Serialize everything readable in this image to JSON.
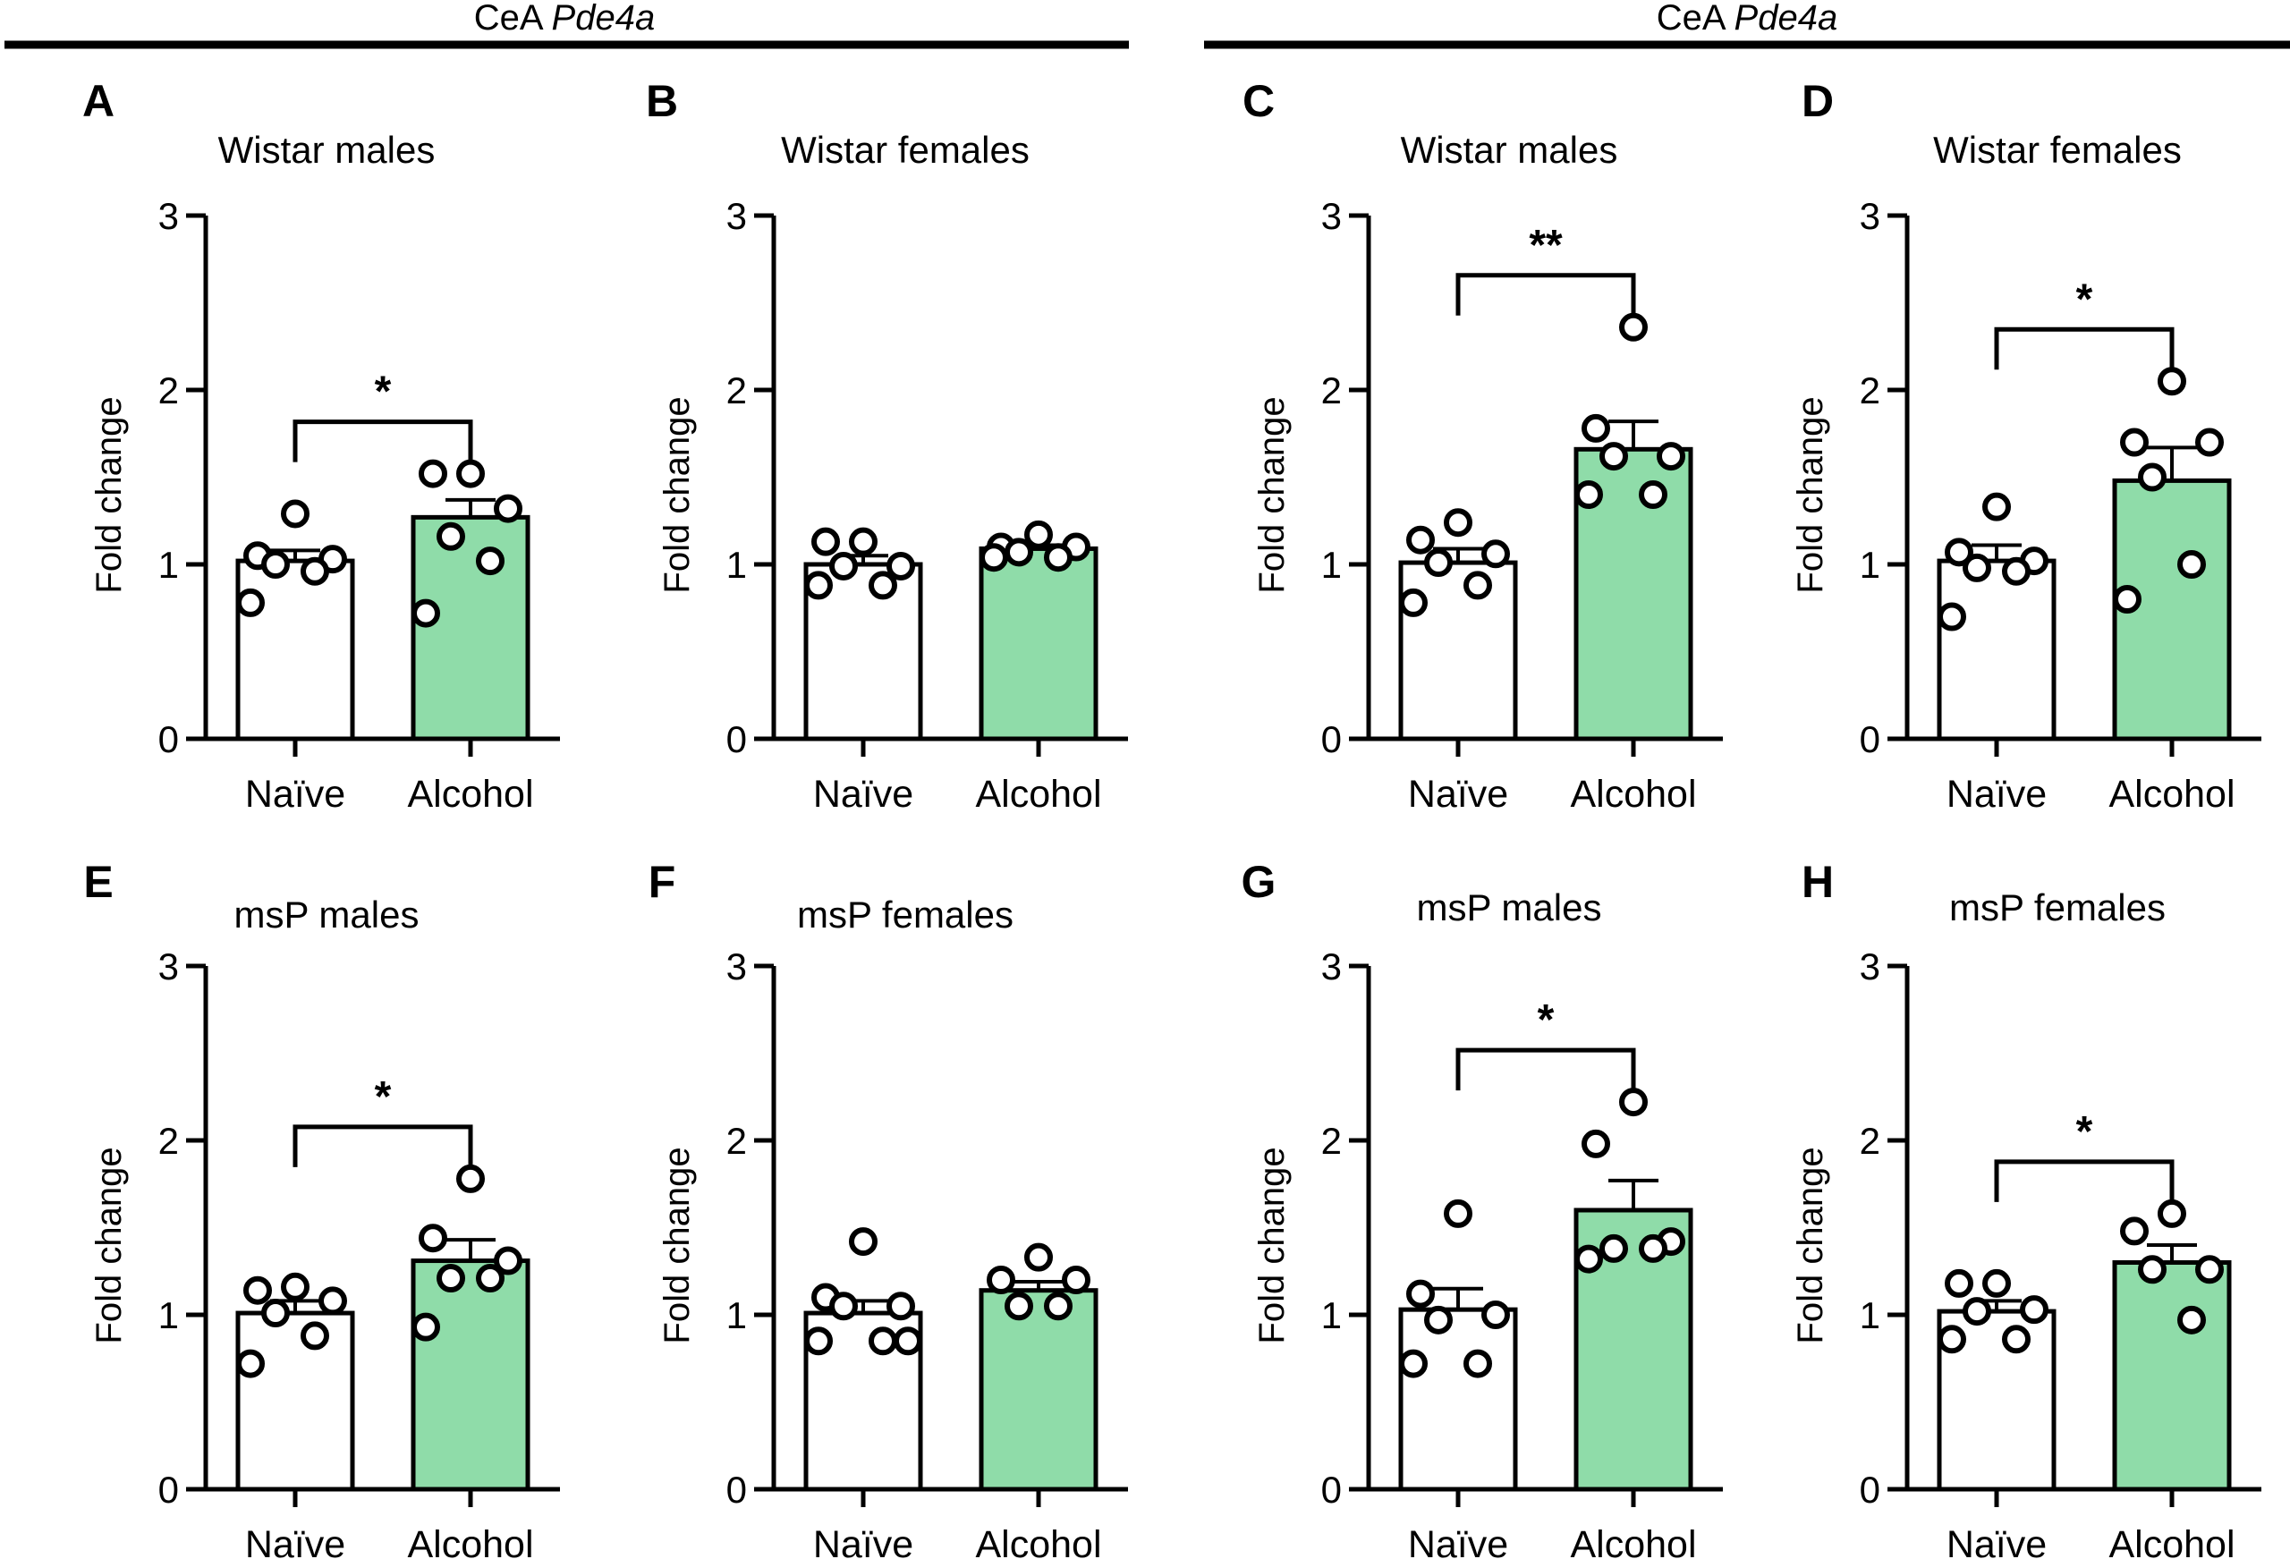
{
  "headers": [
    {
      "prefix": "CeA",
      "gene": "Pde4a"
    },
    {
      "prefix": "CeA",
      "gene": "Pde4a"
    }
  ],
  "colors": {
    "naive_fill": "#ffffff",
    "alcohol_fill": "#8fdca9",
    "ink": "#000000"
  },
  "chart_data": [
    {
      "type": "bar",
      "panel": "A",
      "title": "Wistar males",
      "ylabel": "Fold change",
      "ylim": [
        0,
        3
      ],
      "yticks": [
        "0",
        "1",
        "2",
        "3"
      ],
      "categories": [
        "Naïve",
        "Alcohol"
      ],
      "values": [
        1.02,
        1.27
      ],
      "sem": [
        0.06,
        0.1
      ],
      "points": [
        [
          1.29,
          1.05,
          1.03,
          1.0,
          0.96,
          0.78
        ],
        [
          1.52,
          1.52,
          1.32,
          1.16,
          1.02,
          0.72
        ]
      ],
      "significance": "*"
    },
    {
      "type": "bar",
      "panel": "B",
      "title": "Wistar females",
      "ylabel": "Fold change",
      "ylim": [
        0,
        3
      ],
      "yticks": [
        "0",
        "1",
        "2",
        "3"
      ],
      "categories": [
        "Naïve",
        "Alcohol"
      ],
      "values": [
        1.0,
        1.09
      ],
      "sem": [
        0.05,
        0.02
      ],
      "points": [
        [
          1.13,
          1.13,
          0.99,
          0.99,
          0.88,
          0.88
        ],
        [
          1.17,
          1.1,
          1.1,
          1.07,
          1.04,
          1.04
        ]
      ],
      "significance": ""
    },
    {
      "type": "bar",
      "panel": "C",
      "title": "Wistar males",
      "ylabel": "Fold change",
      "ylim": [
        0,
        3
      ],
      "yticks": [
        "0",
        "1",
        "2",
        "3"
      ],
      "categories": [
        "Naïve",
        "Alcohol"
      ],
      "values": [
        1.01,
        1.66
      ],
      "sem": [
        0.08,
        0.16
      ],
      "points": [
        [
          1.24,
          1.14,
          1.06,
          1.01,
          0.88,
          0.78
        ],
        [
          2.36,
          1.78,
          1.62,
          1.62,
          1.4,
          1.4
        ]
      ],
      "significance": "**"
    },
    {
      "type": "bar",
      "panel": "D",
      "title": "Wistar females",
      "ylabel": "Fold change",
      "ylim": [
        0,
        3
      ],
      "yticks": [
        "0",
        "1",
        "2",
        "3"
      ],
      "categories": [
        "Naïve",
        "Alcohol"
      ],
      "values": [
        1.02,
        1.48
      ],
      "sem": [
        0.09,
        0.19
      ],
      "points": [
        [
          1.33,
          1.07,
          1.02,
          0.98,
          0.96,
          0.7
        ],
        [
          2.05,
          1.7,
          1.7,
          1.5,
          1.0,
          0.8
        ]
      ],
      "significance": "*"
    },
    {
      "type": "bar",
      "panel": "E",
      "title": "msP males",
      "ylabel": "Fold change",
      "ylim": [
        0,
        3
      ],
      "yticks": [
        "0",
        "1",
        "2",
        "3"
      ],
      "categories": [
        "Naïve",
        "Alcohol"
      ],
      "values": [
        1.01,
        1.31
      ],
      "sem": [
        0.07,
        0.12
      ],
      "points": [
        [
          1.16,
          1.14,
          1.08,
          1.01,
          0.88,
          0.72
        ],
        [
          1.78,
          1.44,
          1.31,
          1.21,
          1.21,
          0.93
        ]
      ],
      "significance": "*"
    },
    {
      "type": "bar",
      "panel": "F",
      "title": "msP females",
      "ylabel": "Fold change",
      "ylim": [
        0,
        3
      ],
      "yticks": [
        "0",
        "1",
        "2",
        "3"
      ],
      "categories": [
        "Naïve",
        "Alcohol"
      ],
      "values": [
        1.01,
        1.14
      ],
      "sem": [
        0.07,
        0.05
      ],
      "points": [
        [
          1.42,
          1.1,
          1.05,
          1.05,
          0.85,
          0.85,
          0.85
        ],
        [
          1.33,
          1.2,
          1.2,
          1.05,
          1.05
        ]
      ],
      "significance": ""
    },
    {
      "type": "bar",
      "panel": "G",
      "title": "msP males",
      "ylabel": "Fold change",
      "ylim": [
        0,
        3
      ],
      "yticks": [
        "0",
        "1",
        "2",
        "3"
      ],
      "categories": [
        "Naïve",
        "Alcohol"
      ],
      "values": [
        1.03,
        1.6
      ],
      "sem": [
        0.12,
        0.17
      ],
      "points": [
        [
          1.58,
          1.12,
          1.0,
          0.97,
          0.72,
          0.72
        ],
        [
          2.22,
          1.98,
          1.42,
          1.38,
          1.38,
          1.32
        ]
      ],
      "significance": "*"
    },
    {
      "type": "bar",
      "panel": "H",
      "title": "msP females",
      "ylabel": "Fold change",
      "ylim": [
        0,
        3
      ],
      "yticks": [
        "0",
        "1",
        "2",
        "3"
      ],
      "categories": [
        "Naïve",
        "Alcohol"
      ],
      "values": [
        1.02,
        1.3
      ],
      "sem": [
        0.06,
        0.1
      ],
      "points": [
        [
          1.18,
          1.18,
          1.03,
          1.02,
          0.86,
          0.86
        ],
        [
          1.58,
          1.48,
          1.26,
          1.26,
          0.97
        ]
      ],
      "significance": "*"
    }
  ]
}
